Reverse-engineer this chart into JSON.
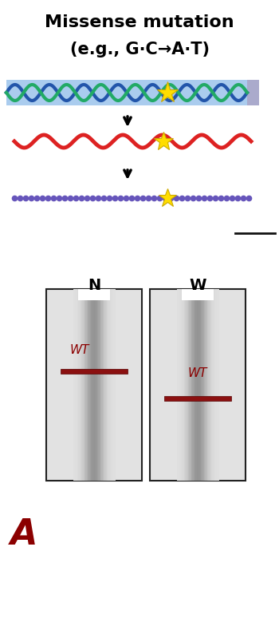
{
  "title_line1": "Missense mutation",
  "title_line2": "(e.g., G·C→A·T)",
  "bg_color": "#ffffff",
  "dna_bg": "#aaccee",
  "dna_strand1": "#2255aa",
  "dna_strand2": "#22aa66",
  "rna_color": "#dd2222",
  "protein_color": "#6655bb",
  "star_color": "#ffdd00",
  "star_edge": "#ccaa00",
  "band_color": "#8b1010",
  "gel_bg_light": "#ebebeb",
  "gel_border": "#222222",
  "wt_color": "#8b0000",
  "N_label": "N",
  "W_label": "W",
  "A_label": "A",
  "sep_line_color": "#111111"
}
